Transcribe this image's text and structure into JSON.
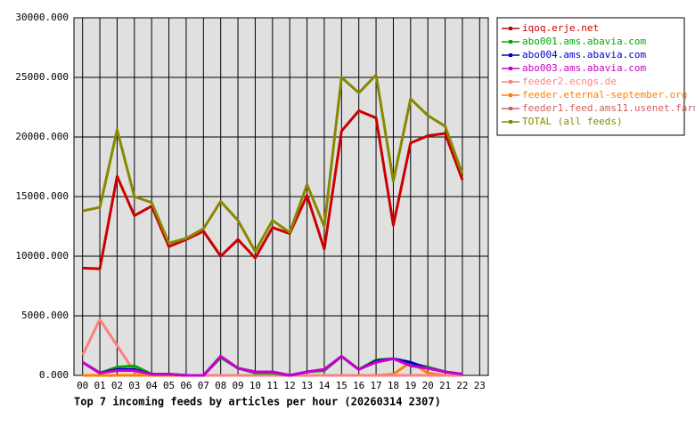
{
  "chart_data": {
    "type": "line",
    "title": "Top 7 incoming feeds by articles per hour (20260314 2307)",
    "categories": [
      "00",
      "01",
      "02",
      "03",
      "04",
      "05",
      "06",
      "07",
      "08",
      "09",
      "10",
      "11",
      "12",
      "13",
      "14",
      "15",
      "16",
      "17",
      "18",
      "19",
      "20",
      "21",
      "22",
      "23"
    ],
    "ylim": [
      0,
      30000
    ],
    "yticks": [
      {
        "value": 0,
        "label": "0.000"
      },
      {
        "value": 5000,
        "label": "5000.000"
      },
      {
        "value": 10000,
        "label": "10000.000"
      },
      {
        "value": 15000,
        "label": "15000.000"
      },
      {
        "value": 20000,
        "label": "20000.000"
      },
      {
        "value": 25000,
        "label": "25000.000"
      },
      {
        "value": 30000,
        "label": "30000.000"
      }
    ],
    "grid": true,
    "legend": "right",
    "series": [
      {
        "name": "feeder1.feed.ams11.usenet.farm",
        "color": "#d06060",
        "values": [
          0,
          0,
          0,
          0,
          0,
          0,
          0,
          0,
          0,
          0,
          0,
          0,
          0,
          0,
          0,
          0,
          0,
          0,
          0,
          0,
          0,
          0,
          0,
          null
        ]
      },
      {
        "name": "feeder.eternal-september.org",
        "color": "#ff8000",
        "values": [
          0,
          0,
          0,
          0,
          0,
          0,
          0,
          0,
          0,
          0,
          0,
          0,
          0,
          0,
          0,
          0,
          0,
          0,
          100,
          1100,
          200,
          0,
          0,
          null
        ]
      },
      {
        "name": "feeder2.ecngs.de",
        "color": "#ff8080",
        "values": [
          1700,
          4700,
          2500,
          300,
          100,
          100,
          0,
          0,
          0,
          0,
          0,
          0,
          0,
          0,
          0,
          0,
          0,
          0,
          0,
          0,
          0,
          0,
          0,
          null
        ]
      },
      {
        "name": "abo001.ams.abavia.com",
        "color": "#00aa00",
        "values": [
          1100,
          200,
          700,
          800,
          100,
          100,
          0,
          0,
          1500,
          600,
          200,
          200,
          0,
          300,
          400,
          1600,
          500,
          1300,
          1400,
          1000,
          700,
          300,
          100,
          null
        ]
      },
      {
        "name": "abo004.ams.abavia.com",
        "color": "#0000cc",
        "values": [
          1100,
          200,
          500,
          500,
          100,
          100,
          0,
          0,
          1600,
          600,
          300,
          300,
          0,
          300,
          500,
          1600,
          500,
          1200,
          1400,
          1100,
          600,
          300,
          100,
          null
        ]
      },
      {
        "name": "abo003.ams.abavia.com",
        "color": "#cc00cc",
        "values": [
          1100,
          200,
          400,
          400,
          100,
          100,
          0,
          0,
          1600,
          600,
          300,
          300,
          0,
          300,
          500,
          1600,
          500,
          1100,
          1400,
          800,
          600,
          300,
          100,
          null
        ]
      },
      {
        "name": "iqoq.erje.net",
        "color": "#cc0000",
        "values": [
          9000,
          8950,
          16700,
          13400,
          14200,
          10800,
          11400,
          12100,
          10000,
          11400,
          9850,
          12400,
          11900,
          15100,
          10600,
          20500,
          22200,
          21600,
          12600,
          19500,
          20100,
          20300,
          16400,
          null
        ]
      },
      {
        "name": "TOTAL (all feeds)",
        "color": "#888800",
        "values": [
          13800,
          14100,
          20600,
          15000,
          14500,
          11100,
          11500,
          12300,
          14600,
          13000,
          10400,
          13000,
          12000,
          16000,
          12500,
          25000,
          23700,
          25200,
          16300,
          23200,
          21800,
          20900,
          16900,
          null
        ]
      }
    ],
    "legend_order": [
      6,
      3,
      4,
      5,
      2,
      1,
      0,
      7
    ]
  }
}
